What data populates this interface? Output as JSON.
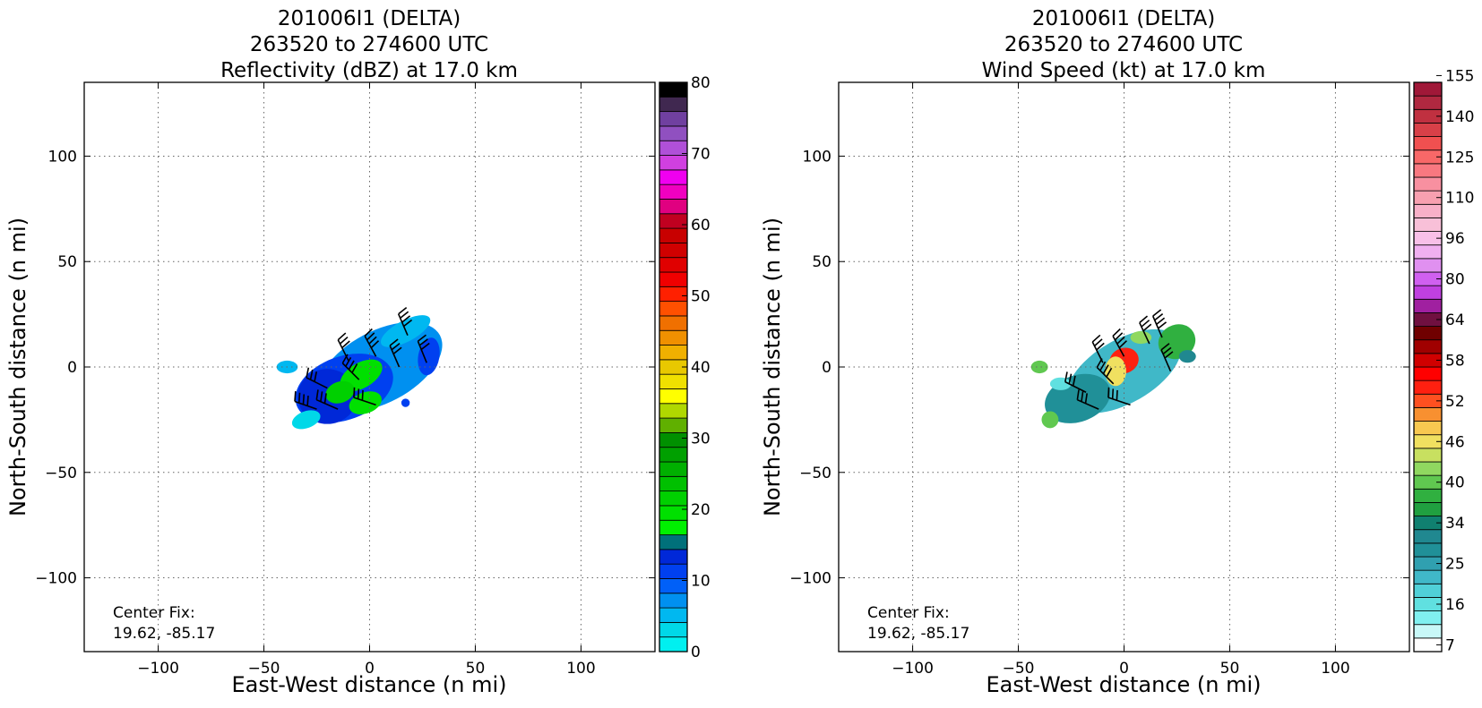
{
  "chart_data": [
    {
      "type": "heatmap",
      "title_lines": [
        "201006I1 (DELTA)",
        "263520 to 274600 UTC",
        "Reflectivity (dBZ) at 17.0 km"
      ],
      "xlabel": "East-West distance (n mi)",
      "ylabel": "North-South distance (n mi)",
      "xlim": [
        -135,
        135
      ],
      "ylim": [
        -135,
        135
      ],
      "xticks": [
        -100,
        -50,
        0,
        50,
        100
      ],
      "yticks": [
        -100,
        -50,
        0,
        50,
        100
      ],
      "xtick_labels": [
        "−100",
        "−50",
        "0",
        "50",
        "100"
      ],
      "ytick_labels": [
        "−100",
        "−50",
        "0",
        "50",
        "100"
      ],
      "grid": true,
      "annotation_lines": [
        "Center Fix:",
        "19.62, -85.17"
      ],
      "colorbar": {
        "min": 0,
        "max": 80,
        "ticks": [
          0,
          10,
          20,
          30,
          40,
          50,
          60,
          70,
          80
        ],
        "tick_labels": [
          "0",
          "10",
          "20",
          "30",
          "40",
          "50",
          "60",
          "70",
          "80"
        ],
        "colors": [
          "#00f0f0",
          "#00d8e8",
          "#00b8f0",
          "#0090f0",
          "#0060f8",
          "#0040f0",
          "#0028d8",
          "#00707a",
          "#00f000",
          "#00e000",
          "#00d000",
          "#00c000",
          "#00b000",
          "#00a000",
          "#009000",
          "#60b000",
          "#b0d800",
          "#ffff00",
          "#f0e000",
          "#e8c800",
          "#f0b000",
          "#f09000",
          "#f07000",
          "#ff5000",
          "#ff2000",
          "#f00000",
          "#e00000",
          "#d00000",
          "#c80000",
          "#c00020",
          "#e00080",
          "#f000c0",
          "#f000f0",
          "#d040e0",
          "#b050d8",
          "#9050c0",
          "#7040a0",
          "#402850",
          "#000000"
        ]
      },
      "echoes": [
        {
          "cx": 5,
          "cy": 0,
          "rx": 32,
          "ry": 17,
          "rot": -28,
          "level": 3
        },
        {
          "cx": -12,
          "cy": -10,
          "rx": 24,
          "ry": 15,
          "rot": -20,
          "level": 5
        },
        {
          "cx": -20,
          "cy": -14,
          "rx": 14,
          "ry": 13,
          "rot": 0,
          "level": 6
        },
        {
          "cx": -4,
          "cy": -4,
          "rx": 11,
          "ry": 6,
          "rot": -30,
          "level": 9
        },
        {
          "cx": -14,
          "cy": -12,
          "rx": 7,
          "ry": 5,
          "rot": -20,
          "level": 10
        },
        {
          "cx": -2,
          "cy": -17,
          "rx": 8,
          "ry": 5,
          "rot": -20,
          "level": 9
        },
        {
          "cx": 28,
          "cy": 5,
          "rx": 5,
          "ry": 9,
          "rot": 10,
          "level": 5
        },
        {
          "cx": 17,
          "cy": 17,
          "rx": 13,
          "ry": 5,
          "rot": -28,
          "level": 2
        },
        {
          "cx": -39,
          "cy": 0,
          "rx": 5,
          "ry": 3,
          "rot": 0,
          "level": 2
        },
        {
          "cx": -30,
          "cy": -25,
          "rx": 7,
          "ry": 4,
          "rot": -20,
          "level": 1
        },
        {
          "cx": 17,
          "cy": -17,
          "rx": 2,
          "ry": 2,
          "rot": 0,
          "level": 5
        }
      ],
      "barbs": [
        {
          "x": 18,
          "y": 15,
          "u": -15,
          "v": -35
        },
        {
          "x": 3,
          "y": 5,
          "u": -18,
          "v": -33
        },
        {
          "x": -10,
          "y": 3,
          "u": -15,
          "v": -30
        },
        {
          "x": 14,
          "y": 0,
          "u": -13,
          "v": -30
        },
        {
          "x": 27,
          "y": 2,
          "u": -13,
          "v": -32
        },
        {
          "x": -5,
          "y": -6,
          "u": -25,
          "v": -25
        },
        {
          "x": -20,
          "y": -10,
          "u": -30,
          "v": -15
        },
        {
          "x": -15,
          "y": -20,
          "u": -32,
          "v": -14
        },
        {
          "x": -25,
          "y": -20,
          "u": -34,
          "v": -12
        },
        {
          "x": 3,
          "y": -18,
          "u": -30,
          "v": -10
        }
      ]
    },
    {
      "type": "heatmap",
      "title_lines": [
        "201006I1 (DELTA)",
        "263520 to 274600 UTC",
        "Wind Speed (kt) at 17.0 km"
      ],
      "xlabel": "East-West distance (n mi)",
      "ylabel": "North-South distance (n mi)",
      "xlim": [
        -135,
        135
      ],
      "ylim": [
        -135,
        135
      ],
      "xticks": [
        -100,
        -50,
        0,
        50,
        100
      ],
      "yticks": [
        -100,
        -50,
        0,
        50,
        100
      ],
      "xtick_labels": [
        "−100",
        "−50",
        "0",
        "50",
        "100"
      ],
      "ytick_labels": [
        "−100",
        "−50",
        "0",
        "50",
        "100"
      ],
      "grid": true,
      "annotation_lines": [
        "Center Fix:",
        "19.62, -85.17"
      ],
      "colorbar": {
        "tick_labels": [
          "7",
          "16",
          "25",
          "34",
          "40",
          "46",
          "52",
          "58",
          "64",
          "80",
          "96",
          "110",
          "125",
          "140",
          "155"
        ],
        "tick_indices": [
          0,
          3,
          6,
          9,
          12,
          15,
          18,
          21,
          24,
          27,
          30,
          33,
          36,
          39,
          42
        ],
        "colors": [
          "#ffffff",
          "#c8f8f8",
          "#80f0f0",
          "#60e0e0",
          "#50d0d8",
          "#40b8c8",
          "#30a0b0",
          "#209098",
          "#208890",
          "#108070",
          "#20a040",
          "#30b040",
          "#60c850",
          "#90d860",
          "#c8e060",
          "#f0e060",
          "#f8c850",
          "#f89030",
          "#ff5020",
          "#ff2010",
          "#ff0000",
          "#d00000",
          "#a00000",
          "#700000",
          "#701040",
          "#a020a0",
          "#c040e0",
          "#d060f0",
          "#e090f0",
          "#f0b0f0",
          "#f8c0e8",
          "#f8c0d8",
          "#f8b0c8",
          "#f8a0b0",
          "#f890a0",
          "#f87880",
          "#f86868",
          "#f05050",
          "#d84048",
          "#c03040",
          "#b02840",
          "#a01838"
        ],
        "levels": 42
      },
      "echoes": [
        {
          "cx": 0,
          "cy": -2,
          "rx": 30,
          "ry": 15,
          "rot": -30,
          "level": 5
        },
        {
          "cx": -22,
          "cy": -15,
          "rx": 16,
          "ry": 11,
          "rot": -20,
          "level": 7
        },
        {
          "cx": 25,
          "cy": 12,
          "rx": 9,
          "ry": 8,
          "rot": -30,
          "level": 11
        },
        {
          "cx": 30,
          "cy": 5,
          "rx": 4,
          "ry": 3,
          "rot": 0,
          "level": 8
        },
        {
          "cx": 0,
          "cy": 3,
          "rx": 7,
          "ry": 6,
          "rot": -20,
          "level": 19
        },
        {
          "cx": -4,
          "cy": -2,
          "rx": 5,
          "ry": 7,
          "rot": 0,
          "level": 15
        },
        {
          "cx": 8,
          "cy": 14,
          "rx": 5,
          "ry": 3,
          "rot": 0,
          "level": 13
        },
        {
          "cx": -40,
          "cy": 0,
          "rx": 4,
          "ry": 3,
          "rot": 0,
          "level": 12
        },
        {
          "cx": -35,
          "cy": -25,
          "rx": 4,
          "ry": 4,
          "rot": 0,
          "level": 12
        },
        {
          "cx": -30,
          "cy": -8,
          "rx": 5,
          "ry": 3,
          "rot": 0,
          "level": 3
        }
      ],
      "barbs": [
        {
          "x": 18,
          "y": 14,
          "u": -15,
          "v": -35
        },
        {
          "x": 12,
          "y": 11,
          "u": -14,
          "v": -30
        },
        {
          "x": 0,
          "y": 5,
          "u": -18,
          "v": -33
        },
        {
          "x": -10,
          "y": 2,
          "u": -15,
          "v": -30
        },
        {
          "x": 22,
          "y": -2,
          "u": -13,
          "v": -30
        },
        {
          "x": -5,
          "y": -8,
          "u": -25,
          "v": -25
        },
        {
          "x": -18,
          "y": -12,
          "u": -30,
          "v": -15
        },
        {
          "x": -12,
          "y": -20,
          "u": -32,
          "v": -14
        },
        {
          "x": 3,
          "y": -18,
          "u": -30,
          "v": -10
        }
      ]
    }
  ]
}
